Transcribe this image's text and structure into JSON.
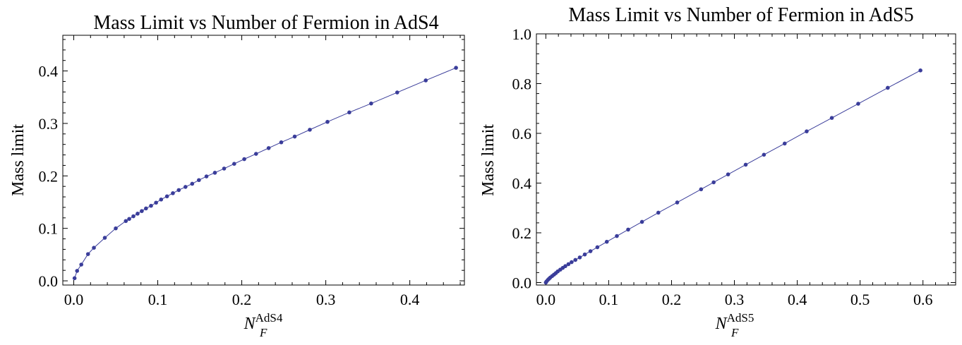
{
  "chart_data": [
    {
      "type": "line",
      "title": "Mass Limit vs Number of Fermion in AdS4",
      "xlabel": {
        "main": "N",
        "sub": "F",
        "sup": "AdS4"
      },
      "ylabel": "Mass limit",
      "xlim": [
        -0.013,
        0.465
      ],
      "ylim": [
        -0.008,
        0.468
      ],
      "xticks": [
        0.0,
        0.1,
        0.2,
        0.3,
        0.4
      ],
      "xtick_labels": [
        "0.0",
        "0.1",
        "0.2",
        "0.3",
        "0.4"
      ],
      "yticks": [
        0.0,
        0.1,
        0.2,
        0.3,
        0.4
      ],
      "ytick_labels": [
        "0.0",
        "0.1",
        "0.2",
        "0.3",
        "0.4"
      ],
      "grid": false,
      "color": "#3a3d9a",
      "series": [
        {
          "x": [
            0.001,
            0.004,
            0.009,
            0.017,
            0.024,
            0.037,
            0.05,
            0.062,
            0.066,
            0.071,
            0.076,
            0.081,
            0.086,
            0.092,
            0.098,
            0.104,
            0.111,
            0.118,
            0.125,
            0.133,
            0.141,
            0.149,
            0.158,
            0.168,
            0.179,
            0.191,
            0.203,
            0.217,
            0.232,
            0.247,
            0.263,
            0.281,
            0.302,
            0.328,
            0.354,
            0.385,
            0.419,
            0.455
          ],
          "values": [
            0.005,
            0.019,
            0.031,
            0.051,
            0.063,
            0.082,
            0.1,
            0.114,
            0.118,
            0.123,
            0.128,
            0.133,
            0.138,
            0.143,
            0.149,
            0.155,
            0.161,
            0.167,
            0.173,
            0.179,
            0.185,
            0.192,
            0.199,
            0.206,
            0.214,
            0.223,
            0.232,
            0.242,
            0.253,
            0.264,
            0.275,
            0.288,
            0.303,
            0.321,
            0.338,
            0.359,
            0.382,
            0.406
          ]
        }
      ]
    },
    {
      "type": "line",
      "title": "Mass Limit vs Number of Fermion in AdS5",
      "xlabel": {
        "main": "N",
        "sub": "F",
        "sup": "AdS5"
      },
      "ylabel": "Mass limit",
      "xlim": [
        -0.015,
        0.652
      ],
      "ylim": [
        -0.01,
        1.0
      ],
      "xticks": [
        0.0,
        0.1,
        0.2,
        0.3,
        0.4,
        0.5,
        0.6
      ],
      "xtick_labels": [
        "0.0",
        "0.1",
        "0.2",
        "0.3",
        "0.4",
        "0.5",
        "0.6"
      ],
      "yticks": [
        0.0,
        0.2,
        0.4,
        0.6,
        0.8,
        1.0
      ],
      "ytick_labels": [
        "0.0",
        "0.2",
        "0.4",
        "0.6",
        "0.8",
        "1.0"
      ],
      "grid": false,
      "color": "#3a3d9a",
      "series": [
        {
          "x": [
            0.0,
            0.001,
            0.003,
            0.005,
            0.007,
            0.01,
            0.013,
            0.016,
            0.019,
            0.023,
            0.027,
            0.031,
            0.036,
            0.041,
            0.047,
            0.054,
            0.062,
            0.071,
            0.082,
            0.097,
            0.113,
            0.131,
            0.153,
            0.179,
            0.209,
            0.247,
            0.267,
            0.29,
            0.318,
            0.347,
            0.38,
            0.415,
            0.455,
            0.497,
            0.544,
            0.596
          ],
          "values": [
            0.0,
            0.004,
            0.01,
            0.015,
            0.02,
            0.026,
            0.032,
            0.038,
            0.045,
            0.052,
            0.059,
            0.066,
            0.074,
            0.082,
            0.091,
            0.101,
            0.113,
            0.126,
            0.142,
            0.164,
            0.187,
            0.213,
            0.244,
            0.281,
            0.322,
            0.375,
            0.403,
            0.435,
            0.474,
            0.514,
            0.559,
            0.608,
            0.662,
            0.719,
            0.783,
            0.853
          ]
        }
      ]
    }
  ]
}
